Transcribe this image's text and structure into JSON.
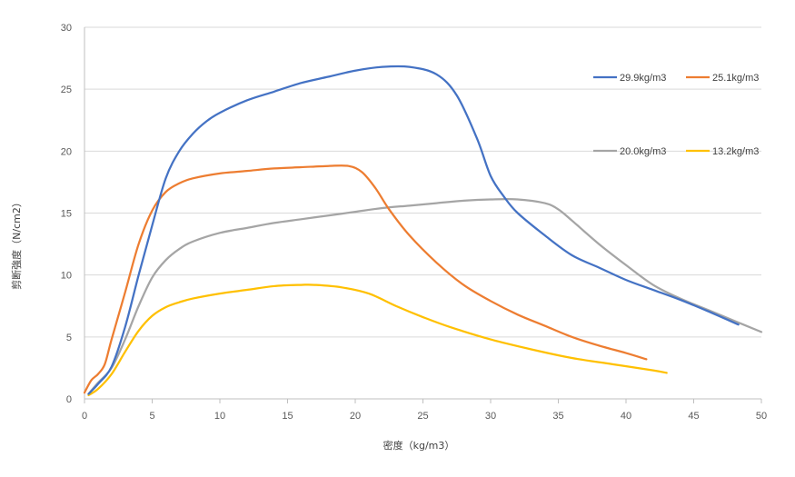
{
  "chart_data": {
    "type": "line",
    "title": "",
    "xlabel": "密度（kg/m3）",
    "ylabel": "剪断強度（N/cm2）",
    "xlim": [
      0,
      50
    ],
    "ylim": [
      0,
      30
    ],
    "x_ticks": [
      "0",
      "5",
      "10",
      "15",
      "20",
      "25",
      "30",
      "35",
      "40",
      "45",
      "50"
    ],
    "y_ticks": [
      "0",
      "5",
      "10",
      "15",
      "20",
      "25",
      "30"
    ],
    "grid": "horizontal",
    "legend": "right",
    "series": [
      {
        "name": "29.9kg/m3",
        "color": "#4472C4",
        "points": [
          [
            0.3,
            0.4
          ],
          [
            1,
            1.2
          ],
          [
            2,
            2.6
          ],
          [
            3,
            5.8
          ],
          [
            4,
            10
          ],
          [
            5,
            14
          ],
          [
            6,
            17.8
          ],
          [
            7,
            20
          ],
          [
            8,
            21.4
          ],
          [
            9,
            22.4
          ],
          [
            10,
            23.1
          ],
          [
            12,
            24.1
          ],
          [
            14,
            24.8
          ],
          [
            16,
            25.5
          ],
          [
            18,
            26
          ],
          [
            20,
            26.5
          ],
          [
            22,
            26.8
          ],
          [
            24,
            26.8
          ],
          [
            26,
            26.2
          ],
          [
            27.5,
            24.5
          ],
          [
            29,
            21
          ],
          [
            30,
            18
          ],
          [
            31,
            16.3
          ],
          [
            32,
            15
          ],
          [
            34,
            13.2
          ],
          [
            36,
            11.6
          ],
          [
            38,
            10.6
          ],
          [
            40,
            9.6
          ],
          [
            42,
            8.8
          ],
          [
            44,
            8
          ],
          [
            46,
            7.1
          ],
          [
            48.3,
            6
          ]
        ]
      },
      {
        "name": "25.1kg/m3",
        "color": "#ED7D31",
        "points": [
          [
            0,
            0.5
          ],
          [
            0.5,
            1.5
          ],
          [
            1,
            2
          ],
          [
            1.5,
            2.8
          ],
          [
            2,
            4.8
          ],
          [
            3,
            8.6
          ],
          [
            4,
            12.5
          ],
          [
            5,
            15.2
          ],
          [
            6,
            16.7
          ],
          [
            7,
            17.4
          ],
          [
            8,
            17.8
          ],
          [
            10,
            18.2
          ],
          [
            12,
            18.4
          ],
          [
            14,
            18.6
          ],
          [
            16,
            18.7
          ],
          [
            18,
            18.8
          ],
          [
            19.5,
            18.8
          ],
          [
            20.5,
            18.3
          ],
          [
            21.5,
            17
          ],
          [
            22.5,
            15.3
          ],
          [
            24,
            13.2
          ],
          [
            26,
            11
          ],
          [
            28,
            9.2
          ],
          [
            30,
            7.9
          ],
          [
            32,
            6.8
          ],
          [
            34,
            5.9
          ],
          [
            36,
            5
          ],
          [
            38,
            4.3
          ],
          [
            40,
            3.7
          ],
          [
            41.5,
            3.2
          ]
        ]
      },
      {
        "name": "20.0kg/m3",
        "color": "#A5A5A5",
        "points": [
          [
            0.3,
            0.4
          ],
          [
            1,
            1.3
          ],
          [
            2,
            2.5
          ],
          [
            3,
            4.8
          ],
          [
            4,
            7.5
          ],
          [
            5,
            9.8
          ],
          [
            6,
            11.2
          ],
          [
            7,
            12.1
          ],
          [
            8,
            12.7
          ],
          [
            10,
            13.4
          ],
          [
            12,
            13.8
          ],
          [
            14,
            14.2
          ],
          [
            16,
            14.5
          ],
          [
            18,
            14.8
          ],
          [
            20,
            15.1
          ],
          [
            22,
            15.4
          ],
          [
            24,
            15.6
          ],
          [
            26,
            15.8
          ],
          [
            28,
            16
          ],
          [
            30,
            16.1
          ],
          [
            32,
            16.1
          ],
          [
            34,
            15.8
          ],
          [
            35,
            15.3
          ],
          [
            36,
            14.4
          ],
          [
            38,
            12.5
          ],
          [
            40,
            10.8
          ],
          [
            42,
            9.2
          ],
          [
            44,
            8.1
          ],
          [
            46,
            7.2
          ],
          [
            48,
            6.3
          ],
          [
            50,
            5.4
          ]
        ]
      },
      {
        "name": "13.2kg/m3",
        "color": "#FFC000",
        "points": [
          [
            0.3,
            0.3
          ],
          [
            1,
            0.8
          ],
          [
            2,
            2
          ],
          [
            3,
            3.8
          ],
          [
            4,
            5.5
          ],
          [
            5,
            6.7
          ],
          [
            6,
            7.4
          ],
          [
            7,
            7.8
          ],
          [
            8,
            8.1
          ],
          [
            10,
            8.5
          ],
          [
            12,
            8.8
          ],
          [
            14,
            9.1
          ],
          [
            16,
            9.2
          ],
          [
            17,
            9.2
          ],
          [
            19,
            9
          ],
          [
            21,
            8.5
          ],
          [
            23,
            7.5
          ],
          [
            25,
            6.6
          ],
          [
            27,
            5.8
          ],
          [
            30,
            4.8
          ],
          [
            33,
            4
          ],
          [
            36,
            3.3
          ],
          [
            39,
            2.8
          ],
          [
            42,
            2.3
          ],
          [
            43,
            2.1
          ]
        ]
      }
    ]
  }
}
